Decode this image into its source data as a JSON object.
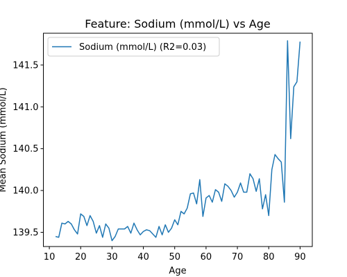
{
  "chart_data": {
    "type": "line",
    "title": "Feature: Sodium (mmol/L) vs Age",
    "xlabel": "Age",
    "ylabel": "Mean Sodium (mmol/L)",
    "xlim": [
      8.1,
      93.9
    ],
    "ylim": [
      139.33,
      141.88
    ],
    "xticks": [
      10,
      20,
      30,
      40,
      50,
      60,
      70,
      80,
      90
    ],
    "yticks": [
      139.5,
      140.0,
      140.5,
      141.0,
      141.5
    ],
    "ytick_labels": [
      "139.5",
      "140.0",
      "140.5",
      "141.0",
      "141.5"
    ],
    "grid": false,
    "legend_position": "top-left",
    "series": [
      {
        "name": "Sodium (mmol/L) (R2=0.03)",
        "color": "#1f77b4",
        "x": [
          12,
          13,
          14,
          15,
          16,
          17,
          18,
          19,
          20,
          21,
          22,
          23,
          24,
          25,
          26,
          27,
          28,
          29,
          30,
          31,
          32,
          33,
          34,
          35,
          36,
          37,
          38,
          39,
          40,
          41,
          42,
          43,
          44,
          45,
          46,
          47,
          48,
          49,
          50,
          51,
          52,
          53,
          54,
          55,
          56,
          57,
          58,
          59,
          60,
          61,
          62,
          63,
          64,
          65,
          66,
          67,
          68,
          69,
          70,
          71,
          72,
          73,
          74,
          75,
          76,
          77,
          78,
          79,
          80,
          81,
          82,
          83,
          84,
          85,
          86,
          87,
          88,
          89,
          90
        ],
        "y": [
          139.45,
          139.44,
          139.61,
          139.6,
          139.63,
          139.6,
          139.53,
          139.48,
          139.72,
          139.69,
          139.58,
          139.7,
          139.63,
          139.49,
          139.58,
          139.44,
          139.6,
          139.55,
          139.4,
          139.45,
          139.54,
          139.54,
          139.54,
          139.57,
          139.49,
          139.61,
          139.53,
          139.47,
          139.51,
          139.53,
          139.52,
          139.48,
          139.44,
          139.57,
          139.47,
          139.59,
          139.5,
          139.55,
          139.65,
          139.59,
          139.75,
          139.72,
          139.79,
          139.96,
          139.97,
          139.84,
          140.13,
          139.69,
          139.91,
          139.94,
          139.86,
          140.01,
          139.98,
          139.87,
          140.08,
          140.05,
          140.0,
          139.92,
          139.98,
          140.09,
          139.98,
          139.98,
          140.2,
          140.14,
          139.99,
          140.14,
          139.78,
          139.95,
          139.7,
          140.25,
          140.43,
          140.38,
          140.34,
          139.86,
          141.79,
          140.62,
          141.24,
          141.3,
          141.78
        ]
      }
    ]
  }
}
